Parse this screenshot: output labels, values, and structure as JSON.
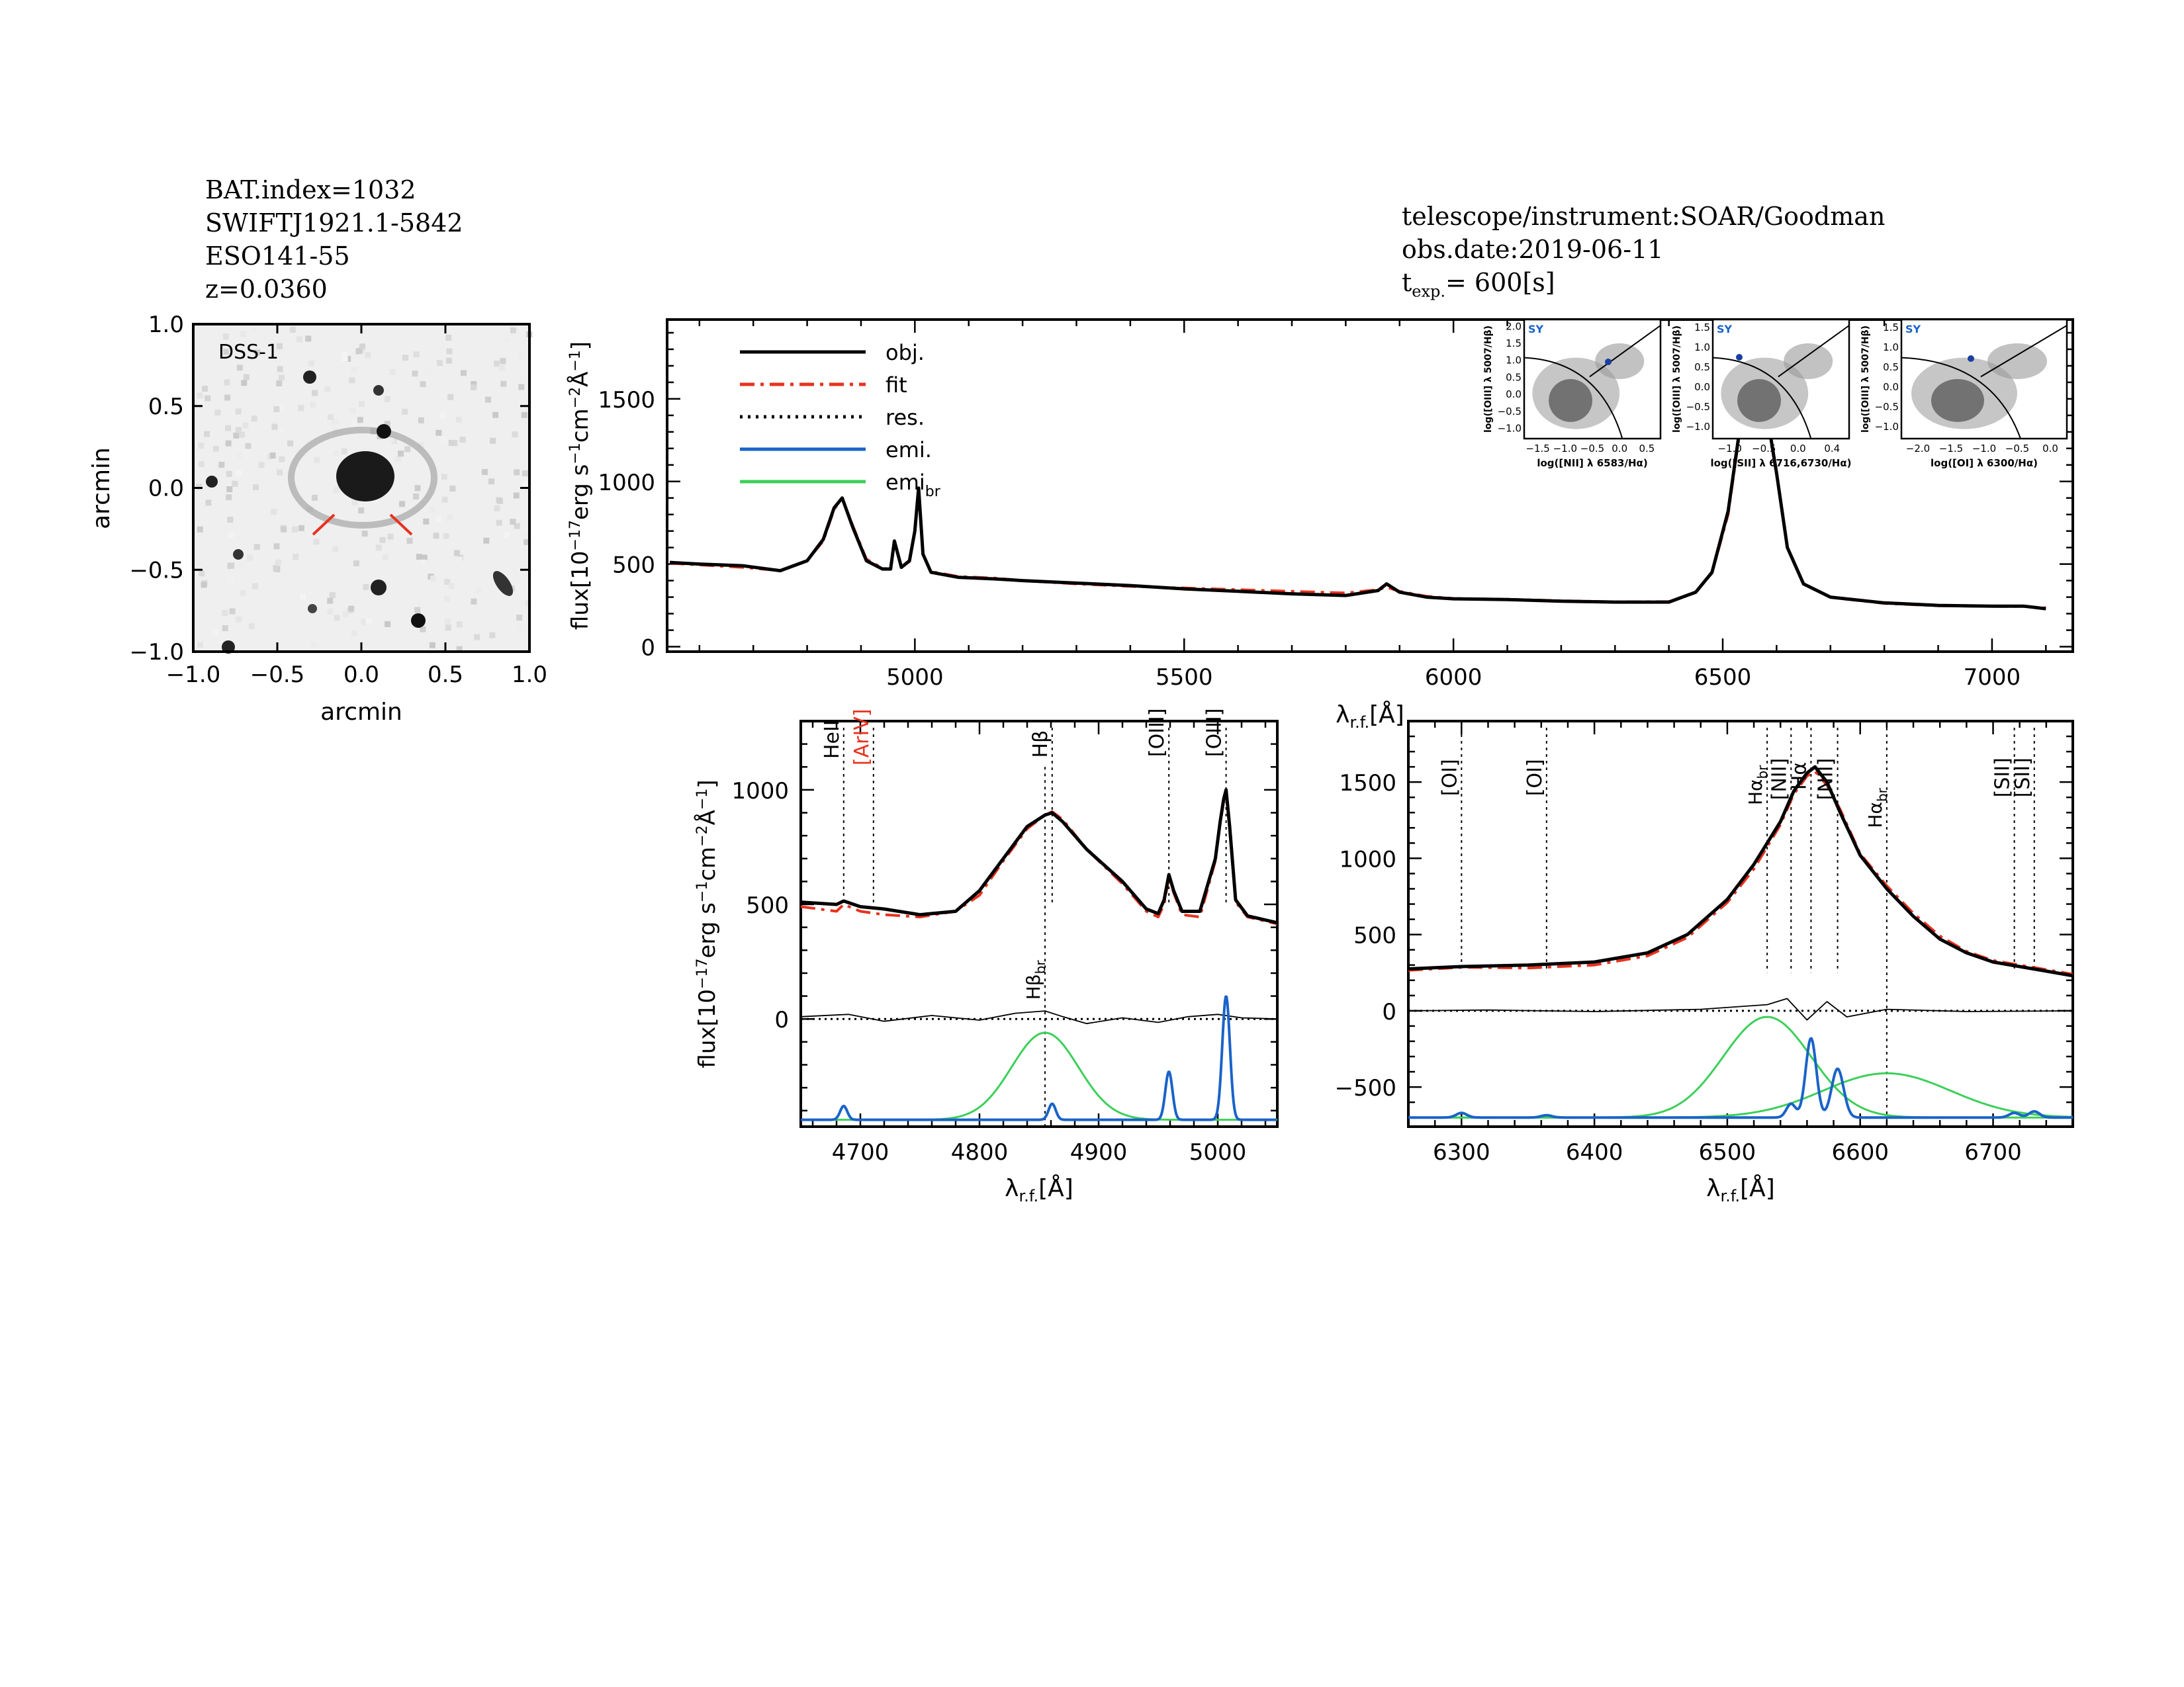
{
  "header_left": [
    "BAT.index=1032",
    "SWIFTJ1921.1-5842",
    "ESO141-55",
    "z=0.0360"
  ],
  "header_right": {
    "instrument": "telescope/instrument:SOAR/Goodman",
    "date": "obs.date:2019-06-11",
    "texp_prefix": "t",
    "texp_sub": "exp.",
    "texp_value": "= 600[s]"
  },
  "image_panel": {
    "label": "DSS-1",
    "xlabel": "arcmin",
    "ylabel": "arcmin",
    "ticks": [
      "-1.0",
      "-0.5",
      "0.0",
      "0.5",
      "1.0"
    ]
  },
  "chart_data": [
    {
      "type": "line",
      "panel": "full-spectrum",
      "xlabel": "λ r.f. [Å]",
      "ylabel": "flux[10^-17 erg s^-1 cm^-2 Å^-1]",
      "xlim": [
        4540,
        7150
      ],
      "ylim": [
        -30,
        1980
      ],
      "xticks": [
        5000,
        5500,
        6000,
        6500,
        7000
      ],
      "yticks": [
        0,
        500,
        1000,
        1500
      ],
      "legend": [
        "obj.",
        "fit",
        "res.",
        "emi.",
        "emi br"
      ],
      "series": [
        {
          "name": "obj.",
          "color": "#000000",
          "x": [
            4545,
            4600,
            4680,
            4750,
            4800,
            4830,
            4850,
            4865,
            4885,
            4910,
            4940,
            4955,
            4962,
            4975,
            4990,
            5000,
            5007,
            5015,
            5030,
            5080,
            5150,
            5200,
            5300,
            5400,
            5500,
            5600,
            5700,
            5800,
            5860,
            5876,
            5900,
            5950,
            6000,
            6100,
            6200,
            6300,
            6400,
            6450,
            6480,
            6510,
            6530,
            6550,
            6565,
            6580,
            6600,
            6620,
            6650,
            6700,
            6800,
            6900,
            7000,
            7060,
            7100
          ],
          "y": [
            510,
            500,
            490,
            460,
            520,
            650,
            840,
            900,
            720,
            520,
            470,
            470,
            640,
            480,
            520,
            700,
            960,
            560,
            450,
            420,
            410,
            400,
            385,
            370,
            350,
            335,
            320,
            310,
            340,
            380,
            330,
            300,
            290,
            285,
            275,
            270,
            270,
            330,
            450,
            820,
            1280,
            1580,
            1600,
            1450,
            1050,
            600,
            380,
            300,
            265,
            250,
            245,
            245,
            230
          ]
        },
        {
          "name": "fit",
          "color": "#e8321e",
          "x": [
            4545,
            4600,
            4680,
            4750,
            4800,
            4830,
            4850,
            4865,
            4885,
            4910,
            4940,
            4955,
            4962,
            4975,
            4990,
            5000,
            5007,
            5015,
            5030,
            5080,
            5150,
            5200,
            5300,
            5400,
            5500,
            5600,
            5700,
            5800,
            5860,
            5876,
            5900,
            5950,
            6000,
            6100,
            6200,
            6300,
            6400,
            6450,
            6480,
            6510,
            6530,
            6550,
            6565,
            6580,
            6600,
            6620,
            6650,
            6700,
            6800,
            6900,
            7000,
            7060,
            7100
          ],
          "y": [
            505,
            495,
            480,
            460,
            520,
            640,
            830,
            900,
            730,
            530,
            475,
            470,
            630,
            480,
            515,
            690,
            950,
            560,
            455,
            425,
            415,
            400,
            380,
            365,
            355,
            345,
            335,
            325,
            345,
            360,
            335,
            305,
            292,
            287,
            278,
            272,
            273,
            330,
            445,
            800,
            1260,
            1540,
            1560,
            1420,
            1040,
            600,
            380,
            298,
            262,
            248,
            244,
            243,
            235
          ]
        }
      ]
    },
    {
      "type": "line",
      "panel": "hbeta-oiii-zoom",
      "xlabel": "λ r.f. [Å]",
      "ylabel": "flux[10^-17 erg s^-1 cm^-2 Å^-1]",
      "xlim": [
        4650,
        5050
      ],
      "ylim": [
        -470,
        1300
      ],
      "xticks": [
        4700,
        4800,
        4900,
        5000
      ],
      "yticks": [
        0,
        500,
        1000
      ],
      "line_labels": [
        "HeII",
        "[ArIV]",
        "Hβ",
        "[OIII]",
        "[OIII]",
        "Hβ br"
      ],
      "line_positions": [
        4686,
        4711,
        4861,
        4959,
        5007,
        4855
      ],
      "series": [
        {
          "name": "obj.",
          "color": "#000000",
          "x": [
            4650,
            4680,
            4686,
            4700,
            4720,
            4750,
            4780,
            4800,
            4820,
            4840,
            4855,
            4861,
            4870,
            4890,
            4920,
            4940,
            4950,
            4955,
            4959,
            4963,
            4970,
            4985,
            4998,
            5002,
            5005,
            5007,
            5010,
            5015,
            5025,
            5050
          ],
          "y": [
            510,
            500,
            515,
            490,
            480,
            455,
            470,
            560,
            700,
            840,
            890,
            900,
            860,
            740,
            600,
            480,
            460,
            520,
            630,
            560,
            470,
            470,
            700,
            860,
            960,
            1000,
            840,
            520,
            450,
            420
          ]
        },
        {
          "name": "fit",
          "color": "#e8321e",
          "x": [
            4650,
            4680,
            4686,
            4700,
            4720,
            4750,
            4780,
            4800,
            4820,
            4840,
            4855,
            4861,
            4870,
            4890,
            4920,
            4940,
            4950,
            4955,
            4959,
            4963,
            4970,
            4985,
            4998,
            5002,
            5005,
            5007,
            5010,
            5015,
            5025,
            5050
          ],
          "y": [
            490,
            470,
            500,
            470,
            455,
            445,
            470,
            540,
            690,
            830,
            890,
            905,
            870,
            740,
            590,
            470,
            445,
            500,
            620,
            550,
            455,
            445,
            690,
            850,
            950,
            995,
            830,
            510,
            445,
            415
          ]
        },
        {
          "name": "res.",
          "color": "#000000",
          "x": [
            4650,
            4690,
            4720,
            4760,
            4800,
            4830,
            4855,
            4870,
            4890,
            4920,
            4950,
            4975,
            5000,
            5020,
            5050
          ],
          "y": [
            10,
            20,
            -10,
            15,
            -5,
            25,
            35,
            10,
            -20,
            5,
            -15,
            10,
            20,
            5,
            0
          ]
        }
      ]
    },
    {
      "type": "line",
      "panel": "halpha-zoom",
      "xlabel": "λ r.f. [Å]",
      "ylabel": "",
      "xlim": [
        6260,
        6760
      ],
      "ylim": [
        -760,
        1900
      ],
      "xticks": [
        6300,
        6400,
        6500,
        6600,
        6700
      ],
      "yticks": [
        -500,
        0,
        500,
        1000,
        1500
      ],
      "line_labels": [
        "[OI]",
        "[OI]",
        "Hα br",
        "[NII]",
        "Hα",
        "[NII]",
        "Hα br",
        "[SII]",
        "[SII]"
      ],
      "line_positions": [
        6300,
        6364,
        6530,
        6548,
        6563,
        6583,
        6620,
        6716,
        6731
      ],
      "series": [
        {
          "name": "obj.",
          "color": "#000000",
          "x": [
            6260,
            6300,
            6350,
            6400,
            6440,
            6470,
            6500,
            6520,
            6540,
            6550,
            6560,
            6566,
            6575,
            6585,
            6600,
            6620,
            6640,
            6660,
            6680,
            6700,
            6720,
            6740,
            6760
          ],
          "y": [
            275,
            290,
            300,
            320,
            380,
            500,
            730,
            960,
            1240,
            1440,
            1560,
            1600,
            1500,
            1300,
            1020,
            800,
            620,
            470,
            380,
            320,
            290,
            260,
            230
          ]
        },
        {
          "name": "fit",
          "color": "#e8321e",
          "x": [
            6260,
            6300,
            6350,
            6400,
            6440,
            6470,
            6500,
            6520,
            6540,
            6550,
            6560,
            6566,
            6575,
            6585,
            6600,
            6620,
            6640,
            6660,
            6680,
            6700,
            6720,
            6740,
            6760
          ],
          "y": [
            265,
            285,
            280,
            300,
            360,
            480,
            710,
            930,
            1220,
            1420,
            1540,
            1570,
            1480,
            1320,
            1030,
            820,
            640,
            490,
            390,
            330,
            300,
            270,
            240
          ]
        },
        {
          "name": "res.",
          "color": "#000000",
          "x": [
            6260,
            6320,
            6400,
            6480,
            6530,
            6545,
            6560,
            6575,
            6590,
            6620,
            6680,
            6760
          ],
          "y": [
            0,
            5,
            -5,
            10,
            40,
            80,
            -60,
            60,
            -40,
            10,
            -5,
            0
          ]
        }
      ]
    }
  ],
  "insets": [
    {
      "label": "SY",
      "xlabel": "log([NII] λ 6583/Hα)",
      "ylabel": "log([OIII] λ 5007/Hβ)",
      "xticks": [
        "-1.5",
        "-1.0",
        "-0.5",
        "0.0",
        "0.5"
      ],
      "yticks": [
        "2.0",
        "1.5",
        "1.0",
        "0.5",
        "0.0",
        "-0.5",
        "-1.0"
      ]
    },
    {
      "label": "SY",
      "xlabel": "log([SII] λ 6716,6730/Hα)",
      "ylabel": "log([OIII] λ 5007/Hβ)",
      "xticks": [
        "-1.0",
        "-0.5",
        "0.0",
        "0.4"
      ],
      "yticks": [
        "1.5",
        "1.0",
        "0.5",
        "0.0",
        "-0.5",
        "-1.0"
      ]
    },
    {
      "label": "SY",
      "xlabel": "log([OI] λ 6300/Hα)",
      "ylabel": "log([OIII] λ 5007/Hβ)",
      "xticks": [
        "-2.0",
        "-1.5",
        "-1.0",
        "-0.5",
        "0.0"
      ],
      "yticks": [
        "1.5",
        "1.0",
        "0.5",
        "0.0",
        "-0.5",
        "-1.0"
      ]
    }
  ],
  "colors": {
    "object": "#000000",
    "fit": "#e8321e",
    "emi": "#1a63c9",
    "emi_br": "#3ccf5a",
    "label_red": "#e8321e"
  }
}
